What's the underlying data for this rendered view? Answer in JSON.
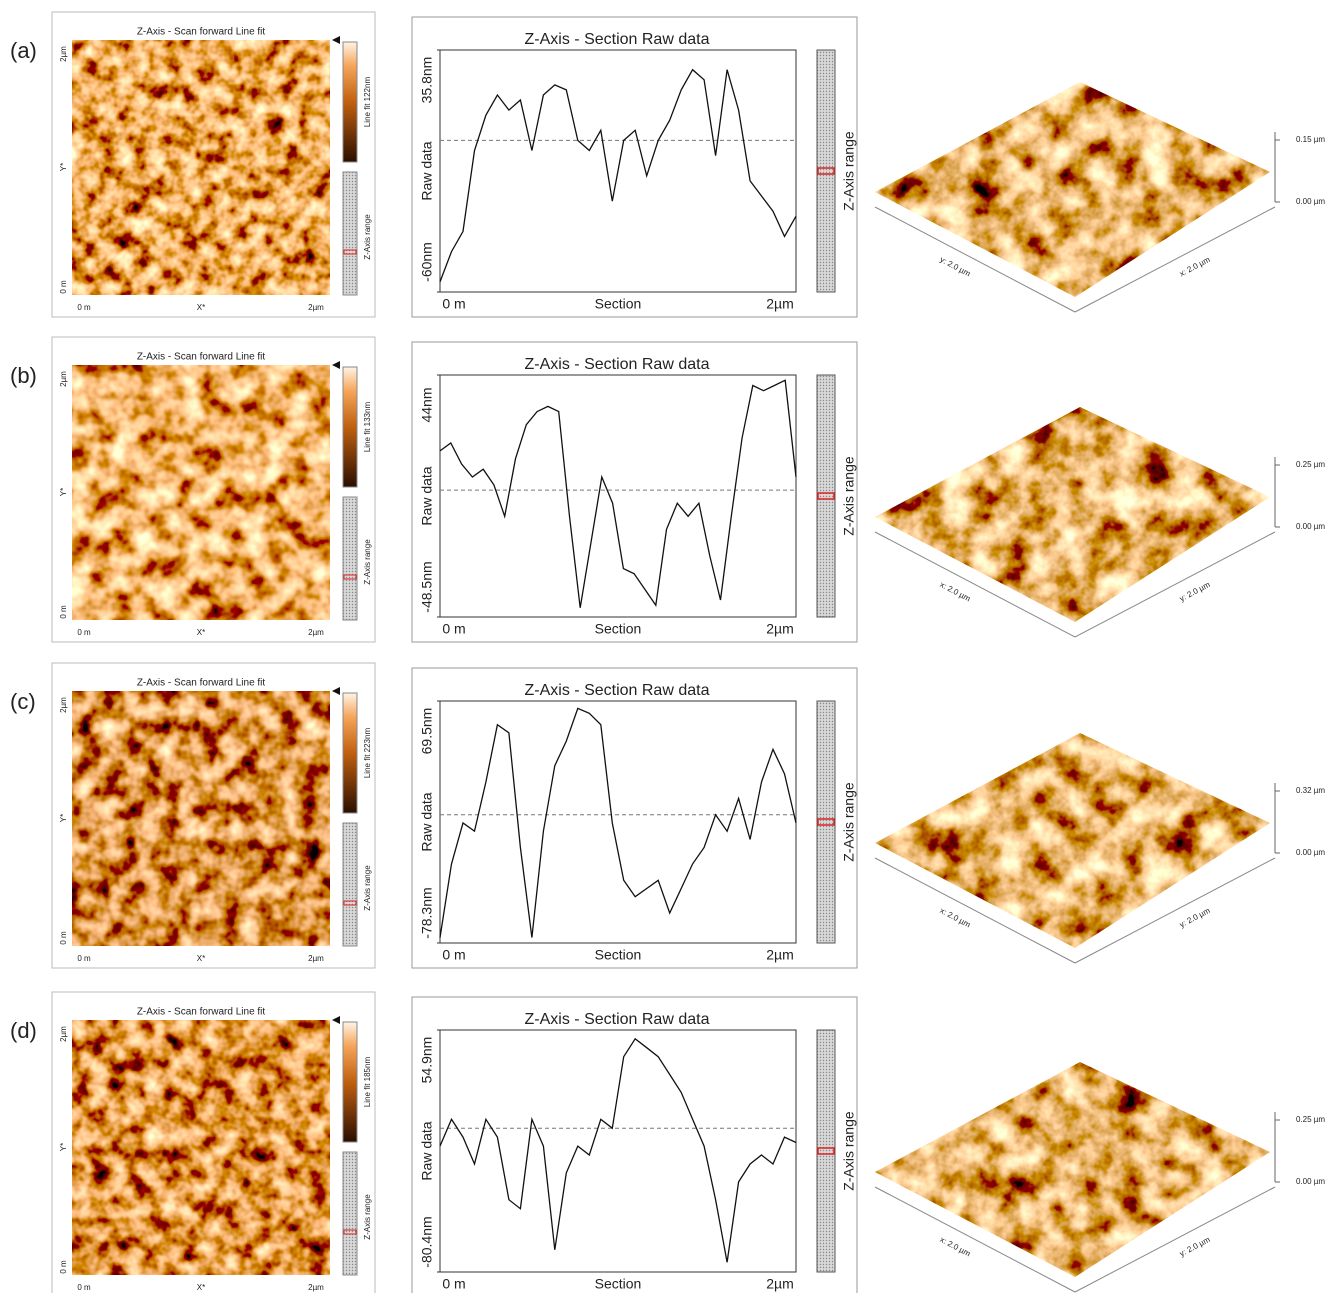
{
  "panels": [
    {
      "label": "(a)",
      "image": {
        "title": "Z-Axis - Scan forward   Line fit",
        "y_top": "2µm",
        "y_mid": "Y*",
        "y_bottom": "0 m",
        "x_left": "0 m",
        "x_mid": "X*",
        "x_right": "2µm",
        "colorbar_label": "Line fit 122nm",
        "range_label": "Z-Axis range"
      },
      "section": {
        "type": "line",
        "title": "Z-Axis - Section   Raw data",
        "ylabel": "Raw data",
        "xlabel": "Section",
        "xleft": "0 m",
        "xright": "2µm",
        "range_label": "Z-Axis range",
        "ylim": [
          -60,
          35.8
        ],
        "yticks": [
          {
            "value": -60,
            "label": "-60nm"
          },
          {
            "value": 35.8,
            "label": "35.8nm"
          }
        ],
        "values": [
          -56,
          -44,
          -36,
          -4,
          10,
          18,
          12,
          16,
          -4,
          18,
          22,
          20,
          0,
          -4,
          4,
          -24,
          0,
          4,
          -14,
          0,
          8,
          20,
          28,
          24,
          -6,
          28,
          12,
          -16,
          -22,
          -28,
          -38,
          -30
        ]
      },
      "view3d": {
        "ztop": "0.15 µm",
        "zbottom": "0.00 µm",
        "left_axis": "y: 2.0 µm",
        "right_axis": "x: 2.0 µm"
      }
    },
    {
      "label": "(b)",
      "image": {
        "title": "Z-Axis - Scan forward   Line fit",
        "y_top": "2µm",
        "y_mid": "Y*",
        "y_bottom": "0 m",
        "x_left": "0 m",
        "x_mid": "X*",
        "x_right": "2µm",
        "colorbar_label": "Line fit 133nm",
        "range_label": "Z-Axis range"
      },
      "section": {
        "type": "line",
        "title": "Z-Axis - Section   Raw data",
        "ylabel": "Raw data",
        "xlabel": "Section",
        "xleft": "0 m",
        "xright": "2µm",
        "range_label": "Z-Axis range",
        "ylim": [
          -48.5,
          44
        ],
        "yticks": [
          {
            "value": -48.5,
            "label": "-48.5nm"
          },
          {
            "value": 44,
            "label": "44nm"
          }
        ],
        "values": [
          15,
          18,
          10,
          5,
          8,
          2,
          -10,
          12,
          25,
          30,
          32,
          30,
          -10,
          -45,
          -20,
          5,
          -5,
          -30,
          -32,
          -38,
          -44,
          -15,
          -5,
          -10,
          -5,
          -25,
          -42,
          -10,
          20,
          40,
          38,
          40,
          42,
          5
        ]
      },
      "view3d": {
        "ztop": "0.25 µm",
        "zbottom": "0.00 µm",
        "left_axis": "x: 2.0 µm",
        "right_axis": "y: 2.0 µm"
      }
    },
    {
      "label": "(c)",
      "image": {
        "title": "Z-Axis - Scan forward   Line fit",
        "y_top": "2µm",
        "y_mid": "Y*",
        "y_bottom": "0 m",
        "x_left": "0 m",
        "x_mid": "X*",
        "x_right": "2µm",
        "colorbar_label": "Line fit 223nm",
        "range_label": "Z-Axis range"
      },
      "section": {
        "type": "line",
        "title": "Z-Axis - Section   Raw data",
        "ylabel": "Raw data",
        "xlabel": "Section",
        "xleft": "0 m",
        "xright": "2µm",
        "range_label": "Z-Axis range",
        "ylim": [
          -78.3,
          69.5
        ],
        "yticks": [
          {
            "value": -78.3,
            "label": "-78.3nm"
          },
          {
            "value": 69.5,
            "label": "69.5nm"
          }
        ],
        "values": [
          -75,
          -30,
          -5,
          -10,
          20,
          55,
          50,
          -20,
          -75,
          -10,
          30,
          45,
          65,
          62,
          55,
          -5,
          -40,
          -50,
          -45,
          -40,
          -60,
          -45,
          -30,
          -20,
          0,
          -10,
          10,
          -15,
          20,
          40,
          25,
          -5
        ]
      },
      "view3d": {
        "ztop": "0.32 µm",
        "zbottom": "0.00 µm",
        "left_axis": "x: 2.0 µm",
        "right_axis": "y: 2.0 µm"
      }
    },
    {
      "label": "(d)",
      "image": {
        "title": "Z-Axis - Scan forward   Line fit",
        "y_top": "2µm",
        "y_mid": "Y*",
        "y_bottom": "0 m",
        "x_left": "0 m",
        "x_mid": "X*",
        "x_right": "2µm",
        "colorbar_label": "Line fit 185nm",
        "range_label": "Z-Axis range"
      },
      "section": {
        "type": "line",
        "title": "Z-Axis - Section   Raw data",
        "ylabel": "Raw data",
        "xlabel": "Section",
        "xleft": "0 m",
        "xright": "2µm",
        "range_label": "Z-Axis range",
        "ylim": [
          -80.4,
          54.9
        ],
        "yticks": [
          {
            "value": -80.4,
            "label": "-80.4nm"
          },
          {
            "value": 54.9,
            "label": "54.9nm"
          }
        ],
        "values": [
          -10,
          5,
          -5,
          -20,
          5,
          -5,
          -40,
          -45,
          5,
          -10,
          -68,
          -25,
          -10,
          -15,
          5,
          0,
          40,
          50,
          45,
          40,
          30,
          20,
          5,
          -10,
          -40,
          -75,
          -30,
          -20,
          -15,
          -20,
          -5,
          -8
        ]
      },
      "view3d": {
        "ztop": "0.25 µm",
        "zbottom": "0.00 µm",
        "left_axis": "x: 2.0 µm",
        "right_axis": "y: 2.0 µm"
      }
    }
  ]
}
